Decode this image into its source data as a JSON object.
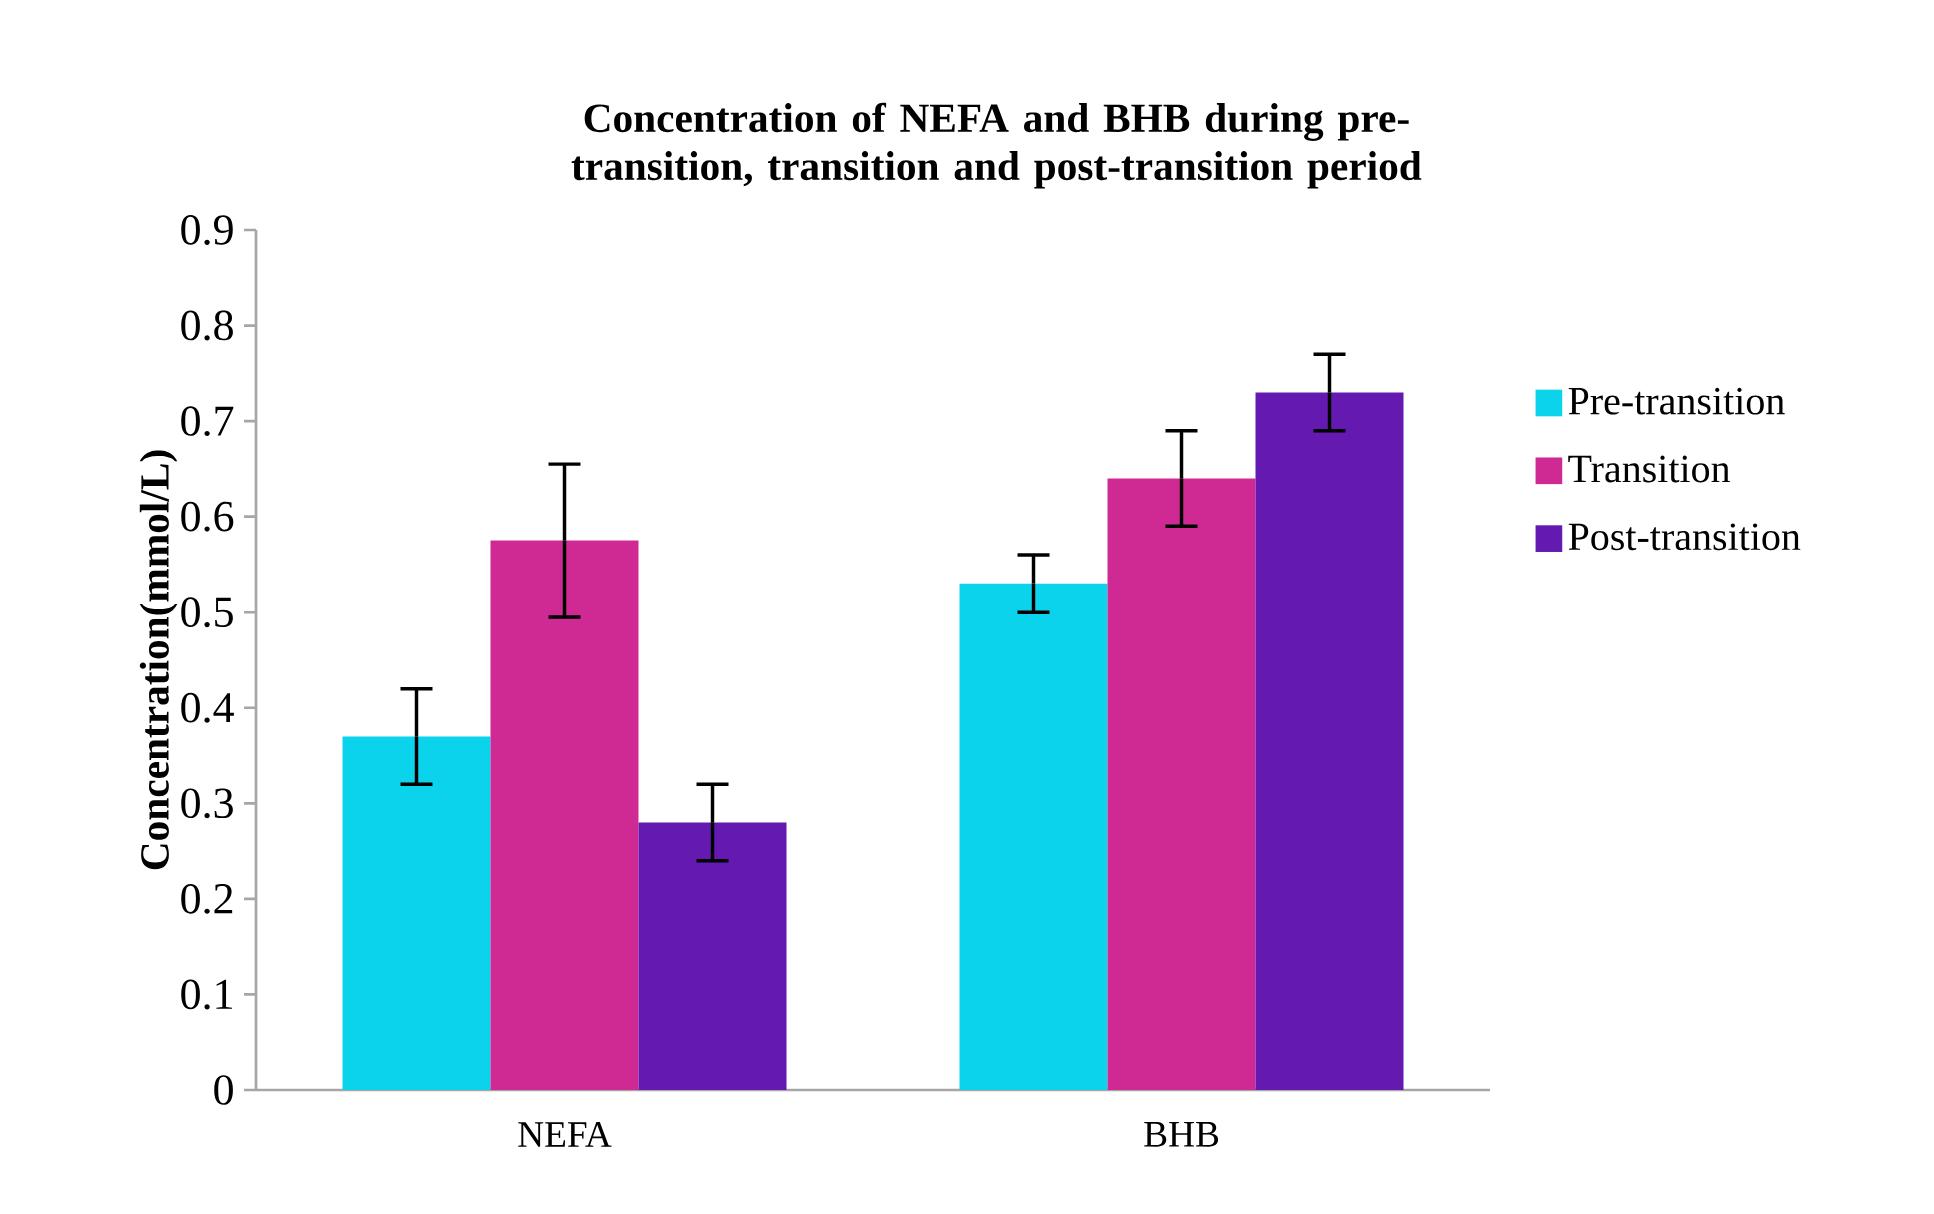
{
  "chart_data": {
    "type": "bar",
    "title": "Concentration of NEFA and BHB during pre-transition, transition and post-transition period",
    "ylabel": "Concentration(mmol/L)",
    "categories": [
      "NEFA",
      "BHB"
    ],
    "series": [
      {
        "name": "Pre-transition",
        "color": "#0bd3ec",
        "values": [
          0.37,
          0.53
        ],
        "errors": [
          0.05,
          0.03
        ]
      },
      {
        "name": "Transition",
        "color": "#cf2a93",
        "values": [
          0.575,
          0.64
        ],
        "errors": [
          0.08,
          0.05
        ]
      },
      {
        "name": "Post-transition",
        "color": "#6419b0",
        "values": [
          0.28,
          0.73
        ],
        "errors": [
          0.04,
          0.04
        ]
      }
    ],
    "ylim": [
      0,
      0.9
    ],
    "yticks": [
      0,
      0.1,
      0.2,
      0.3,
      0.4,
      0.5,
      0.6,
      0.7,
      0.8,
      0.9
    ],
    "legend": "right"
  }
}
